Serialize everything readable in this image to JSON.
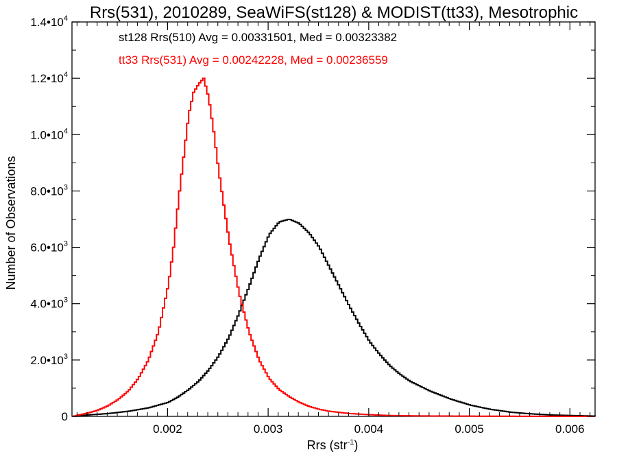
{
  "chart_data": {
    "type": "line",
    "title": "Rrs(531), 2010289, SeaWiFS(st128) & MODIST(tt33), Mesotrophic",
    "xlabel": "Rrs (str",
    "xlabel_sup": "-1",
    "xlabel_close": ")",
    "ylabel": "Number of Observations",
    "xlim": [
      0.00105,
      0.00625
    ],
    "ylim": [
      0,
      14000
    ],
    "grid": false,
    "x_ticks": [
      {
        "value": 0.002,
        "label": "0.002"
      },
      {
        "value": 0.003,
        "label": "0.003"
      },
      {
        "value": 0.004,
        "label": "0.004"
      },
      {
        "value": 0.005,
        "label": "0.005"
      },
      {
        "value": 0.006,
        "label": "0.006"
      }
    ],
    "y_ticks": [
      {
        "value": 0,
        "label": "0",
        "sup": ""
      },
      {
        "value": 2000,
        "label": "2.0•10",
        "sup": "3"
      },
      {
        "value": 4000,
        "label": "4.0•10",
        "sup": "3"
      },
      {
        "value": 6000,
        "label": "6.0•10",
        "sup": "3"
      },
      {
        "value": 8000,
        "label": "8.0•10",
        "sup": "3"
      },
      {
        "value": 10000,
        "label": "1.0•10",
        "sup": "4"
      },
      {
        "value": 12000,
        "label": "1.2•10",
        "sup": "4"
      },
      {
        "value": 14000,
        "label": "1.4•10",
        "sup": "4"
      }
    ],
    "annotations": [
      {
        "text": "st128 Rrs(510) Avg = 0.00331501, Med = 0.00323382",
        "color": "#000000"
      },
      {
        "text": "tt33 Rrs(531) Avg = 0.00242228, Med = 0.00236559",
        "color": "#ff0000"
      }
    ],
    "series": [
      {
        "color": "#000000",
        "x": [
          0.00105,
          0.0012,
          0.0014,
          0.0016,
          0.0018,
          0.002,
          0.0021,
          0.0022,
          0.0023,
          0.0024,
          0.0025,
          0.0026,
          0.0027,
          0.0028,
          0.0029,
          0.003,
          0.0031,
          0.0032,
          0.0033,
          0.0034,
          0.0035,
          0.0036,
          0.0037,
          0.0038,
          0.0039,
          0.004,
          0.0041,
          0.0042,
          0.0043,
          0.0044,
          0.0046,
          0.0048,
          0.005,
          0.0052,
          0.0054,
          0.0056,
          0.0058,
          0.006,
          0.00625
        ],
        "y": [
          0,
          50,
          100,
          180,
          300,
          500,
          700,
          950,
          1250,
          1650,
          2150,
          2800,
          3650,
          4600,
          5600,
          6450,
          6900,
          7000,
          6850,
          6500,
          6000,
          5300,
          4600,
          3900,
          3250,
          2650,
          2200,
          1800,
          1500,
          1250,
          900,
          620,
          400,
          250,
          150,
          90,
          50,
          30,
          10
        ]
      },
      {
        "color": "#ff0000",
        "x": [
          0.00105,
          0.0012,
          0.0013,
          0.0014,
          0.0015,
          0.0016,
          0.0017,
          0.0018,
          0.0019,
          0.002,
          0.00205,
          0.0021,
          0.00215,
          0.0022,
          0.00225,
          0.0023,
          0.00235,
          0.0024,
          0.00245,
          0.0025,
          0.0026,
          0.0027,
          0.0028,
          0.0029,
          0.003,
          0.0031,
          0.0032,
          0.0033,
          0.0034,
          0.0035,
          0.0036,
          0.0038,
          0.004,
          0.0042,
          0.0045,
          0.005,
          0.0055,
          0.00625
        ],
        "y": [
          0,
          120,
          220,
          380,
          600,
          900,
          1350,
          2000,
          3000,
          4700,
          6000,
          7700,
          9200,
          10700,
          11500,
          11800,
          12000,
          11300,
          10100,
          8700,
          6300,
          4400,
          3000,
          2000,
          1350,
          950,
          700,
          500,
          350,
          250,
          180,
          100,
          60,
          30,
          15,
          8,
          4,
          0
        ]
      }
    ]
  }
}
